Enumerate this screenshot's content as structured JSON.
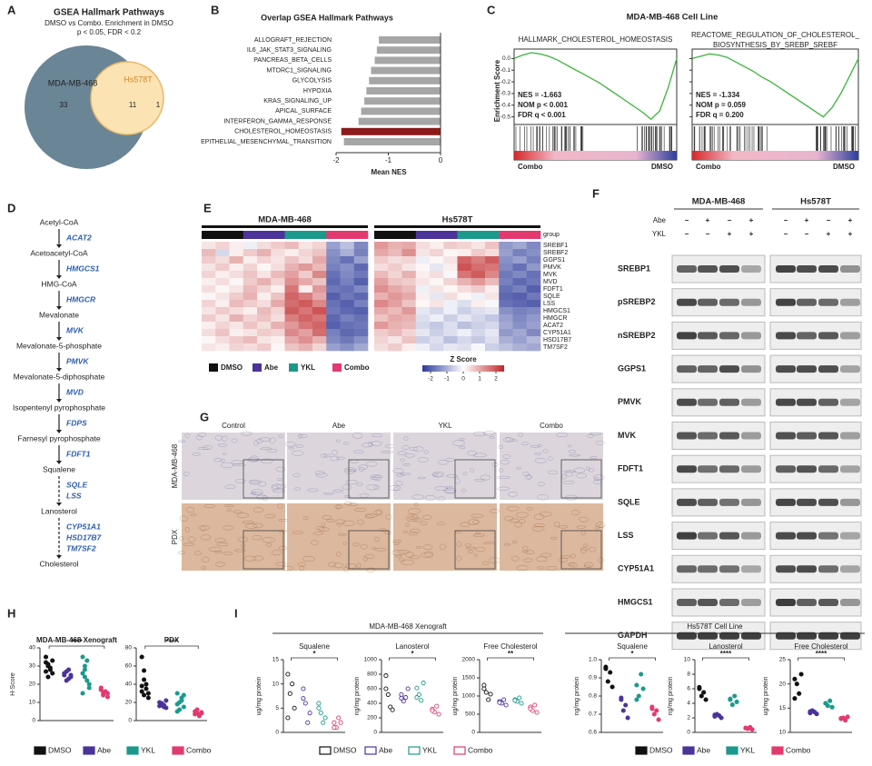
{
  "panel_letters": [
    "A",
    "B",
    "C",
    "D",
    "E",
    "F",
    "G",
    "H",
    "I"
  ],
  "groups": [
    {
      "name": "DMSO",
      "color": "#111111"
    },
    {
      "name": "Abe",
      "color": "#4b3399"
    },
    {
      "name": "YKL",
      "color": "#1b9a8c"
    },
    {
      "name": "Combo",
      "color": "#e23a6e"
    }
  ],
  "chart_data": [
    {
      "type": "venn",
      "title": "GSEA Hallmark Pathways",
      "subtitle": [
        "DMSO vs Combo. Enrichment in DMSO",
        "p < 0.05, FDR < 0.2"
      ],
      "sets": [
        {
          "name": "MDA-MB-468",
          "count": 33,
          "color": "#6a8596"
        },
        {
          "name": "Hs578T",
          "count": 1,
          "color": "#fbe3b4"
        }
      ],
      "overlap": 11
    },
    {
      "type": "bar",
      "title": "Overlap GSEA Hallmark Pathways",
      "categories": [
        "ALLOGRAFT_REJECTION",
        "IL6_JAK_STAT3_SIGNALING",
        "PANCREAS_BETA_CELLS",
        "MTORC1_SIGNALING",
        "GLYCOLYSIS",
        "HYPOXIA",
        "KRAS_SIGNALING_UP",
        "APICAL_SURFACE",
        "INTERFERON_GAMMA_RESPONSE",
        "CHOLESTEROL_HOMEOSTASIS",
        "EPITHELIAL_MESENCHYMAL_TRANSITION"
      ],
      "values": [
        -1.18,
        -1.22,
        -1.26,
        -1.33,
        -1.37,
        -1.42,
        -1.46,
        -1.52,
        -1.57,
        -1.9,
        -1.85
      ],
      "colors": [
        "#a6a6a6",
        "#a6a6a6",
        "#a6a6a6",
        "#a6a6a6",
        "#a6a6a6",
        "#a6a6a6",
        "#a6a6a6",
        "#a6a6a6",
        "#a6a6a6",
        "#8b1a1a",
        "#a6a6a6"
      ],
      "xlim": [
        -2,
        0
      ],
      "xticks": [
        -2,
        -1,
        0
      ],
      "xlabel": "Mean NES"
    },
    {
      "type": "gsea",
      "title": "MDA-MB-468 Cell Line",
      "ylabel": "Enrichment Score",
      "ylim": [
        -0.55,
        0.05
      ],
      "yticks": [
        {
          "value": 0,
          "label": "0.0"
        },
        -0.1,
        -0.2,
        -0.3,
        -0.4,
        -0.5
      ],
      "low_label": "Combo",
      "high_label": "DMSO",
      "color": "#3cb43c",
      "plots": [
        {
          "title": [
            "HALLMARK_CHOLESTEROL_HOMEOSTASIS"
          ],
          "stats": [
            "NES = -1.663",
            "NOM p < 0.001",
            "FDR q < 0.001"
          ],
          "values": [
            0,
            0.03,
            0.05,
            0.04,
            0.02,
            -0.01,
            -0.05,
            -0.09,
            -0.13,
            -0.17,
            -0.21,
            -0.26,
            -0.31,
            -0.36,
            -0.41,
            -0.46,
            -0.52,
            -0.45,
            -0.25,
            0
          ]
        },
        {
          "title": [
            "REACTOME_REGULATION_OF_CHOLESTEROL_",
            "BIOSYNTHESIS_BY_SREBP_SREBF"
          ],
          "stats": [
            "NES = -1.334",
            "NOM p = 0.059",
            "FDR q = 0.200"
          ],
          "values": [
            0,
            0.02,
            0.04,
            0.03,
            0.01,
            -0.03,
            -0.07,
            -0.11,
            -0.16,
            -0.2,
            -0.25,
            -0.3,
            -0.35,
            -0.4,
            -0.45,
            -0.5,
            -0.42,
            -0.3,
            -0.15,
            0
          ]
        }
      ]
    },
    {
      "type": "heatmap",
      "group_label": "group",
      "ztitle": "Z Score",
      "zlim": [
        -2.5,
        2.5
      ],
      "zticks": [
        -2,
        -1,
        0,
        1,
        2
      ],
      "genes": [
        "SREBF1",
        "SREBF2",
        "GGPS1",
        "PMVK",
        "MVK",
        "MVD",
        "FDFT1",
        "SQLE",
        "LSS",
        "HMGCS1",
        "HMGCR",
        "ACAT2",
        "CYP51A1",
        "HSD17B7",
        "TM7SF2"
      ],
      "blocks": [
        {
          "title": "MDA-MB-468",
          "values": [
            [
              0.3,
              0.5,
              0.2,
              -0.2,
              0.4,
              0.6,
              0.8,
              0.3,
              0.5,
              -1.2,
              -0.8,
              -1.5
            ],
            [
              0.8,
              -0.5,
              0.2,
              0.6,
              0.9,
              0.4,
              0.2,
              0.5,
              0.7,
              -1.4,
              -1.0,
              -1.6
            ],
            [
              0.6,
              0.4,
              0.9,
              0.2,
              0.5,
              0.3,
              0.7,
              0.4,
              1.0,
              -1.5,
              -1.8,
              -1.2
            ],
            [
              0.3,
              0.6,
              0.2,
              0.5,
              0.1,
              0.4,
              0.9,
              1.2,
              0.8,
              -1.6,
              -1.4,
              -1.9
            ],
            [
              0.5,
              0.2,
              0.4,
              0.7,
              0.3,
              0.8,
              1.1,
              0.6,
              1.4,
              -1.8,
              -1.5,
              -1.7
            ],
            [
              0.2,
              0.4,
              0.1,
              0.6,
              0.9,
              0.5,
              1.3,
              1.0,
              0.7,
              -1.9,
              -1.6,
              -2.0
            ],
            [
              0.4,
              0.1,
              0.3,
              0.8,
              0.5,
              0.2,
              1.6,
              0.2,
              1.2,
              -1.7,
              -1.8,
              -1.5
            ],
            [
              0.1,
              0.3,
              0.6,
              0.9,
              0.2,
              0.7,
              1.8,
              1.5,
              1.0,
              -2.0,
              -1.7,
              -1.9
            ],
            [
              0.5,
              0.2,
              0.8,
              0.6,
              0.4,
              1.0,
              1.7,
              1.9,
              1.4,
              -1.8,
              -2.0,
              -1.6
            ],
            [
              0.3,
              0.6,
              0.4,
              0.2,
              0.8,
              0.5,
              1.9,
              1.6,
              2.0,
              -1.7,
              -1.9,
              -2.0
            ],
            [
              0.6,
              0.3,
              0.9,
              0.5,
              0.7,
              0.4,
              1.5,
              1.8,
              1.6,
              -1.9,
              -1.6,
              -1.8
            ],
            [
              0.2,
              0.5,
              0.3,
              0.7,
              0.4,
              0.9,
              1.2,
              1.6,
              1.8,
              -2.0,
              -1.8,
              -1.7
            ],
            [
              0.4,
              0.7,
              0.2,
              0.3,
              0.6,
              0.5,
              1.4,
              1.1,
              1.7,
              -1.6,
              -1.9,
              -1.8
            ],
            [
              0.1,
              0.4,
              0.6,
              0.8,
              0.3,
              0.2,
              1.0,
              1.3,
              0.9,
              -1.5,
              -1.7,
              -1.4
            ],
            [
              0.3,
              0.2,
              0.5,
              0.4,
              0.6,
              0.1,
              0.7,
              0.9,
              0.5,
              -1.2,
              -1.4,
              -1.1
            ]
          ]
        },
        {
          "title": "Hs578T",
          "values": [
            [
              1.2,
              0.9,
              1.0,
              0.4,
              0.2,
              0.6,
              0.5,
              0.3,
              0.7,
              -1.3,
              -1.1,
              -1.5
            ],
            [
              1.0,
              0.8,
              1.3,
              0.3,
              0.5,
              0.1,
              0.2,
              0.6,
              0.4,
              -1.2,
              -1.6,
              -1.4
            ],
            [
              0.6,
              0.4,
              0.5,
              -0.2,
              0.1,
              0.3,
              1.8,
              1.5,
              1.9,
              -1.4,
              -1.2,
              -1.6
            ],
            [
              0.4,
              0.6,
              0.3,
              0.1,
              -0.3,
              0.2,
              2.0,
              1.7,
              1.6,
              -1.5,
              -1.8,
              -1.3
            ],
            [
              0.8,
              0.5,
              0.9,
              0.2,
              0.4,
              -0.1,
              1.6,
              1.9,
              1.4,
              -1.7,
              -1.5,
              -1.8
            ],
            [
              1.1,
              0.7,
              0.6,
              0.3,
              0.1,
              0.5,
              0.9,
              1.2,
              0.8,
              -1.6,
              -1.9,
              -1.7
            ],
            [
              1.3,
              1.0,
              0.8,
              -0.2,
              0.3,
              0.1,
              0.4,
              0.6,
              0.2,
              -1.8,
              -1.6,
              -2.0
            ],
            [
              0.9,
              1.2,
              1.0,
              0.2,
              -0.3,
              0.4,
              0.1,
              -0.2,
              0.3,
              -1.9,
              -2.0,
              -1.7
            ],
            [
              1.4,
              1.1,
              0.7,
              0.1,
              0.3,
              -0.2,
              -0.4,
              0.2,
              -0.1,
              -1.8,
              -1.9,
              -2.0
            ],
            [
              1.0,
              0.8,
              1.2,
              -0.3,
              -0.5,
              -0.2,
              -0.6,
              -0.4,
              -0.3,
              -1.4,
              -1.6,
              -1.5
            ],
            [
              0.7,
              1.0,
              0.9,
              -0.4,
              -0.2,
              -0.6,
              -0.3,
              -0.5,
              -0.7,
              -1.2,
              -1.5,
              -1.3
            ],
            [
              1.2,
              0.9,
              0.8,
              -0.5,
              -0.7,
              -0.4,
              -0.8,
              -0.6,
              -0.5,
              -1.1,
              -1.4,
              -1.2
            ],
            [
              0.6,
              0.8,
              0.5,
              -0.3,
              -0.6,
              -0.4,
              -0.2,
              -0.5,
              -0.3,
              -1.3,
              -1.1,
              -1.5
            ],
            [
              0.5,
              0.3,
              0.7,
              -0.6,
              -0.4,
              -0.8,
              -0.5,
              -0.7,
              -0.4,
              -1.0,
              -1.2,
              -0.9
            ],
            [
              0.4,
              0.6,
              0.2,
              -0.2,
              -0.5,
              -0.3,
              -0.4,
              -0.1,
              -0.6,
              -0.8,
              -1.0,
              -1.1
            ]
          ]
        }
      ]
    },
    {
      "type": "dot",
      "title": "MDA-MB-468 Xenograft",
      "ylabel": "H-Score",
      "ylim": [
        0,
        40
      ],
      "yticks": [
        0,
        10,
        20,
        30,
        40
      ],
      "significance": "****",
      "filled": true,
      "values": [
        [
          32,
          30,
          28,
          26,
          35,
          24,
          29,
          33,
          27,
          31
        ],
        [
          25,
          22,
          28,
          24,
          26,
          27,
          23,
          25
        ],
        [
          35,
          30,
          22,
          18,
          26,
          28,
          33,
          20,
          15,
          24
        ],
        [
          17,
          15,
          16,
          13,
          18,
          14,
          16,
          15,
          17
        ]
      ]
    },
    {
      "type": "dot",
      "title": "PDX",
      "ylim": [
        0,
        80
      ],
      "yticks": [
        0,
        20,
        40,
        60,
        80
      ],
      "significance": "****",
      "filled": true,
      "values": [
        [
          70,
          55,
          40,
          30,
          32,
          28,
          35,
          25,
          38,
          45
        ],
        [
          20,
          18,
          15,
          22,
          16,
          19,
          17,
          14
        ],
        [
          30,
          20,
          25,
          15,
          18,
          12,
          22,
          28,
          10
        ],
        [
          10,
          8,
          6,
          9,
          7,
          12,
          5,
          8
        ]
      ]
    },
    {
      "type": "dot",
      "title": "Squalene",
      "ylabel": "ug/mg protein",
      "ylim": [
        0,
        15
      ],
      "yticks": [
        0,
        5,
        10,
        15
      ],
      "significance": "*",
      "filled": false,
      "values": [
        [
          12,
          8,
          10,
          5,
          3
        ],
        [
          9,
          6,
          2,
          4,
          7
        ],
        [
          6,
          4,
          2,
          3,
          5
        ],
        [
          2,
          1,
          3,
          2,
          1
        ]
      ]
    },
    {
      "type": "dot",
      "title": "Lanosterol",
      "ylabel": "ng/mg protein",
      "ylim": [
        0,
        1000
      ],
      "yticks": [
        0,
        200,
        400,
        600,
        800,
        1000
      ],
      "significance": "*",
      "filled": false,
      "values": [
        [
          780,
          520,
          350,
          310,
          600
        ],
        [
          520,
          430,
          480,
          600,
          470
        ],
        [
          610,
          520,
          440,
          680,
          480
        ],
        [
          320,
          280,
          360,
          250,
          300
        ]
      ]
    },
    {
      "type": "dot",
      "title": "Free Cholesterol",
      "ylabel": "ug/mg protein",
      "ylim": [
        0,
        2000
      ],
      "yticks": [
        0,
        500,
        1000,
        1500,
        2000
      ],
      "significance": "**",
      "filled": false,
      "values": [
        [
          1300,
          1100,
          900,
          1050,
          1200
        ],
        [
          850,
          800,
          900,
          750,
          820
        ],
        [
          900,
          850,
          950,
          800,
          880
        ],
        [
          700,
          600,
          750,
          550,
          650
        ]
      ]
    },
    {
      "type": "dot",
      "title": "Squalene",
      "ylabel": "ng/mg protein",
      "ylim": [
        0.6,
        1
      ],
      "yticks": [
        0.6,
        0.7,
        0.8,
        0.9,
        {
          "value": 1,
          "label": "1.0"
        }
      ],
      "significance": "*",
      "filled": true,
      "values": [
        [
          0.95,
          0.88,
          0.93,
          0.85,
          0.96
        ],
        [
          0.78,
          0.72,
          0.75,
          0.68,
          0.79
        ],
        [
          0.86,
          0.8,
          0.92,
          0.84,
          0.78
        ],
        [
          0.74,
          0.7,
          0.72,
          0.67,
          0.73
        ]
      ]
    },
    {
      "type": "dot",
      "title": "Lanosterol",
      "ylabel": "ng/mg protein",
      "ylim": [
        0,
        10
      ],
      "yticks": [
        0,
        2,
        4,
        6,
        8,
        10
      ],
      "significance": "****",
      "filled": true,
      "values": [
        [
          6,
          5,
          5.5,
          4.5,
          6.2
        ],
        [
          2.2,
          2.5,
          2.3,
          2,
          2.4
        ],
        [
          4.5,
          3.8,
          5,
          4.2,
          4.6
        ],
        [
          0.6,
          0.5,
          0.7,
          0.4,
          0.6
        ]
      ]
    },
    {
      "type": "dot",
      "title": "Free Cholesterol",
      "ylabel": "ug/mg protein",
      "ylim": [
        10,
        25
      ],
      "yticks": [
        10,
        15,
        20,
        25
      ],
      "significance": "****",
      "filled": true,
      "values": [
        [
          21,
          20,
          18,
          22,
          17
        ],
        [
          14,
          14.5,
          14.2,
          13.8,
          14.3
        ],
        [
          16,
          15.5,
          16.5,
          15.2,
          16
        ],
        [
          12.8,
          13,
          12.5,
          13.2,
          12.9
        ]
      ]
    }
  ],
  "pathway": {
    "metabolites": [
      "Acetyl-CoA",
      "Acetoacetyl-CoA",
      "HMG-CoA",
      "Mevalonate",
      "Mevalonate-5-phosphate",
      "Mevalonate-5-diphosphate",
      "Isopentenyl pyrophosphate",
      "Farnesyl pyrophosphate",
      "Squalene",
      "Lanosterol",
      "Cholesterol"
    ],
    "enzymes": [
      [
        "ACAT2"
      ],
      [
        "HMGCS1"
      ],
      [
        "HMGCR"
      ],
      [
        "MVK"
      ],
      [
        "PMVK"
      ],
      [
        "MVD"
      ],
      [
        "FDPS"
      ],
      [
        "FDFT1"
      ],
      [
        "SQLE",
        "LSS"
      ],
      [
        "CYP51A1",
        "HSD17B7",
        "TM7SF2"
      ]
    ],
    "dashed": [
      false,
      false,
      false,
      false,
      false,
      false,
      false,
      false,
      true,
      true
    ]
  },
  "blot": {
    "cell_lines": [
      "MDA-MB-468",
      "Hs578T"
    ],
    "treatments": [
      {
        "name": "Abe",
        "signs": [
          "−",
          "+",
          "−",
          "+"
        ]
      },
      {
        "name": "YKL",
        "signs": [
          "−",
          "−",
          "+",
          "+"
        ]
      }
    ],
    "proteins": [
      "SREBP1",
      "pSREBP2",
      "nSREBP2",
      "GGPS1",
      "PMVK",
      "MVK",
      "FDFT1",
      "SQLE",
      "LSS",
      "CYP51A1",
      "HMGCS1",
      "GAPDH"
    ]
  },
  "ihc": {
    "columns": [
      "Control",
      "Abe",
      "YKL",
      "Combo"
    ],
    "rows": [
      "MDA-MB-468",
      "PDX"
    ]
  },
  "i_headers": [
    "MDA-MB-468 Xenograft",
    "Hs578T Cell Line"
  ]
}
